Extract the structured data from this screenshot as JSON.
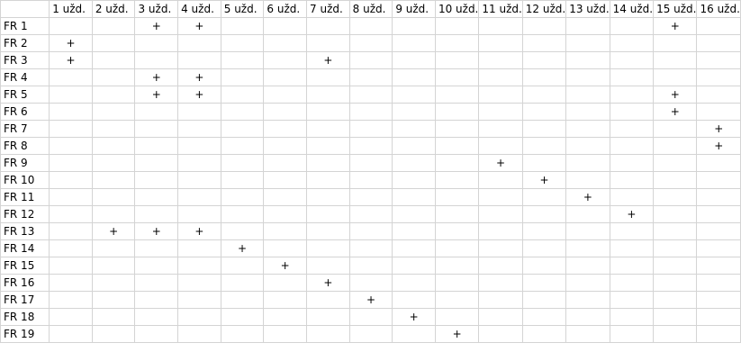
{
  "columns": [
    "1 užd.",
    "2 užd.",
    "3 užd.",
    "4 užd.",
    "5 užd.",
    "6 užd.",
    "7 užd.",
    "8 užd.",
    "9 užd.",
    "10 užd.",
    "11 užd.",
    "12 užd.",
    "13 užd.",
    "14 užd.",
    "15 užd.",
    "16 užd."
  ],
  "rows": [
    {
      "label": "FR 1",
      "cells": [
        "",
        "",
        "+",
        "+",
        "",
        "",
        "",
        "",
        "",
        "",
        "",
        "",
        "",
        "",
        "+",
        ""
      ]
    },
    {
      "label": "FR 2",
      "cells": [
        "+",
        "",
        "",
        "",
        "",
        "",
        "",
        "",
        "",
        "",
        "",
        "",
        "",
        "",
        "",
        ""
      ]
    },
    {
      "label": "FR 3",
      "cells": [
        "+",
        "",
        "",
        "",
        "",
        "",
        "+",
        "",
        "",
        "",
        "",
        "",
        "",
        "",
        "",
        ""
      ]
    },
    {
      "label": "FR 4",
      "cells": [
        "",
        "",
        "+",
        "+",
        "",
        "",
        "",
        "",
        "",
        "",
        "",
        "",
        "",
        "",
        "",
        ""
      ]
    },
    {
      "label": "FR 5",
      "cells": [
        "",
        "",
        "+",
        "+",
        "",
        "",
        "",
        "",
        "",
        "",
        "",
        "",
        "",
        "",
        "+",
        ""
      ]
    },
    {
      "label": "FR 6",
      "cells": [
        "",
        "",
        "",
        "",
        "",
        "",
        "",
        "",
        "",
        "",
        "",
        "",
        "",
        "",
        "+",
        ""
      ]
    },
    {
      "label": "FR 7",
      "cells": [
        "",
        "",
        "",
        "",
        "",
        "",
        "",
        "",
        "",
        "",
        "",
        "",
        "",
        "",
        "",
        "+"
      ]
    },
    {
      "label": "FR 8",
      "cells": [
        "",
        "",
        "",
        "",
        "",
        "",
        "",
        "",
        "",
        "",
        "",
        "",
        "",
        "",
        "",
        "+"
      ]
    },
    {
      "label": "FR 9",
      "cells": [
        "",
        "",
        "",
        "",
        "",
        "",
        "",
        "",
        "",
        "",
        "+",
        "",
        "",
        "",
        "",
        ""
      ]
    },
    {
      "label": "FR 10",
      "cells": [
        "",
        "",
        "",
        "",
        "",
        "",
        "",
        "",
        "",
        "",
        "",
        "+",
        "",
        "",
        "",
        ""
      ]
    },
    {
      "label": "FR 11",
      "cells": [
        "",
        "",
        "",
        "",
        "",
        "",
        "",
        "",
        "",
        "",
        "",
        "",
        "+",
        "",
        "",
        ""
      ]
    },
    {
      "label": "FR 12",
      "cells": [
        "",
        "",
        "",
        "",
        "",
        "",
        "",
        "",
        "",
        "",
        "",
        "",
        "",
        "+",
        "",
        ""
      ]
    },
    {
      "label": "FR 13",
      "cells": [
        "",
        "+",
        "+",
        "+",
        "",
        "",
        "",
        "",
        "",
        "",
        "",
        "",
        "",
        "",
        "",
        ""
      ]
    },
    {
      "label": "FR 14",
      "cells": [
        "",
        "",
        "",
        "",
        "+",
        "",
        "",
        "",
        "",
        "",
        "",
        "",
        "",
        "",
        "",
        ""
      ]
    },
    {
      "label": "FR 15",
      "cells": [
        "",
        "",
        "",
        "",
        "",
        "+",
        "",
        "",
        "",
        "",
        "",
        "",
        "",
        "",
        "",
        ""
      ]
    },
    {
      "label": "FR 16",
      "cells": [
        "",
        "",
        "",
        "",
        "",
        "",
        "+",
        "",
        "",
        "",
        "",
        "",
        "",
        "",
        "",
        ""
      ]
    },
    {
      "label": "FR 17",
      "cells": [
        "",
        "",
        "",
        "",
        "",
        "",
        "",
        "+",
        "",
        "",
        "",
        "",
        "",
        "",
        "",
        ""
      ]
    },
    {
      "label": "FR 18",
      "cells": [
        "",
        "",
        "",
        "",
        "",
        "",
        "",
        "",
        "+",
        "",
        "",
        "",
        "",
        "",
        "",
        ""
      ]
    },
    {
      "label": "FR 19",
      "cells": [
        "",
        "",
        "",
        "",
        "",
        "",
        "",
        "",
        "",
        "+",
        "",
        "",
        "",
        "",
        "",
        ""
      ]
    }
  ]
}
